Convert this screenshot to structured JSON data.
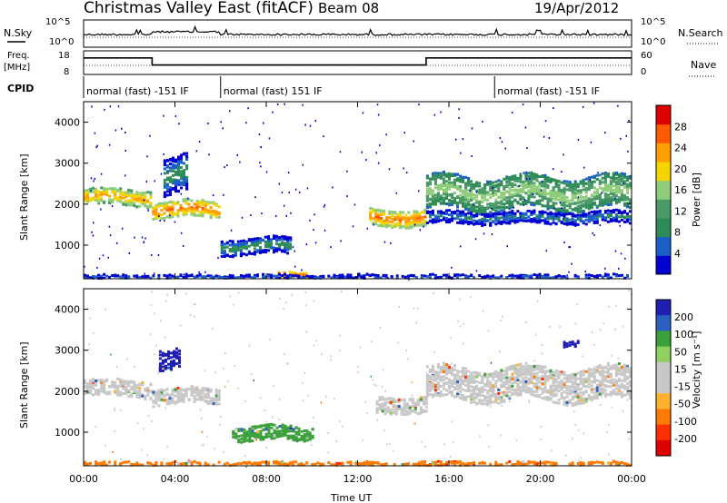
{
  "header": {
    "title": "Christmas Valley East (fitACF)",
    "beam": "Beam 08",
    "date": "19/Apr/2012"
  },
  "top_panels": {
    "nsky_label": "N.Sky",
    "nsearch_label": "N.Search",
    "nsky_ticks": [
      "10^5",
      "10^0"
    ],
    "nsearch_ticks": [
      "10^5",
      "10^0"
    ],
    "freq_label_1": "Freq.",
    "freq_label_2": "[MHz]",
    "freq_ticks": [
      "18",
      "8"
    ],
    "nave_label": "Nave",
    "nave_ticks": [
      "60",
      "0"
    ],
    "cpid_label": "CPID",
    "cpid_segments": [
      {
        "label": "normal (fast) -151 IF",
        "start_h": 0,
        "end_h": 6
      },
      {
        "label": "normal (fast) 151 IF",
        "start_h": 6,
        "end_h": 18
      },
      {
        "label": "normal (fast) -151 IF",
        "start_h": 18,
        "end_h": 24
      }
    ],
    "freq_series": [
      {
        "x": 0,
        "y": 15
      },
      {
        "x": 3,
        "y": 15
      },
      {
        "x": 3,
        "y": 12
      },
      {
        "x": 15,
        "y": 12
      },
      {
        "x": 15,
        "y": 15
      },
      {
        "x": 24,
        "y": 15
      }
    ]
  },
  "colors": {
    "power": [
      "#0000d0",
      "#1a5fc8",
      "#2e8b57",
      "#4a9a66",
      "#8fcc7a",
      "#f5d400",
      "#ffa000",
      "#ff5a00",
      "#e00000"
    ],
    "velocity": [
      "#1f1fb4",
      "#2b5fc0",
      "#3aa03a",
      "#8fd060",
      "#c8c8c8",
      "#c8c8c8",
      "#ffb030",
      "#ff7a00",
      "#ff3000",
      "#e00000"
    ]
  },
  "chart_data": [
    {
      "type": "heatmap",
      "panel": "power",
      "xlabel": "",
      "ylabel": "Slant Range [km]",
      "xlim": [
        0,
        24
      ],
      "ylim": [
        180,
        4500
      ],
      "yticks": [
        1000,
        2000,
        3000,
        4000
      ],
      "ytick_labels": [
        "1000",
        "2000",
        "3000",
        "4000"
      ],
      "colorbar_label": "Power [dB]",
      "colorbar_ticks": [
        "4",
        "8",
        "12",
        "16",
        "20",
        "24",
        "28"
      ],
      "colorbar_range": [
        0,
        30
      ],
      "bands": [
        {
          "t": [
            0,
            3
          ],
          "center": 2200,
          "width": 400,
          "value": 22
        },
        {
          "t": [
            3,
            6
          ],
          "center": 1900,
          "width": 400,
          "value": 24
        },
        {
          "t": [
            3.5,
            4.5
          ],
          "center": 2700,
          "width": 900,
          "value": 10
        },
        {
          "t": [
            6,
            9
          ],
          "center": 1000,
          "width": 400,
          "value": 10
        },
        {
          "t": [
            8.5,
            9.8
          ],
          "center": 300,
          "width": 150,
          "value": 26
        },
        {
          "t": [
            12.5,
            15
          ],
          "center": 1700,
          "width": 400,
          "value": 24
        },
        {
          "t": [
            15,
            24
          ],
          "center": 2300,
          "width": 800,
          "value": 16
        },
        {
          "t": [
            15,
            24
          ],
          "center": 1700,
          "width": 300,
          "value": 8
        },
        {
          "t": [
            0,
            24
          ],
          "center": 250,
          "width": 120,
          "value": 6
        }
      ]
    },
    {
      "type": "heatmap",
      "panel": "velocity",
      "xlabel": "Time UT",
      "ylabel": "Slant Range [km]",
      "xlim": [
        0,
        24
      ],
      "ylim": [
        180,
        4500
      ],
      "xticks": [
        0,
        4,
        8,
        12,
        16,
        20,
        24
      ],
      "xtick_labels": [
        "00:00",
        "04:00",
        "08:00",
        "12:00",
        "16:00",
        "20:00",
        "00:00"
      ],
      "yticks": [
        1000,
        2000,
        3000,
        4000
      ],
      "ytick_labels": [
        "1000",
        "2000",
        "3000",
        "4000"
      ],
      "colorbar_label": "Velocity [m s⁻¹]",
      "colorbar_ticks": [
        "200",
        "100",
        "50",
        "15",
        "-15",
        "-50",
        "-100",
        "-200"
      ],
      "colorbar_range": [
        -250,
        250
      ],
      "bands": [
        {
          "t": [
            0,
            3
          ],
          "center": 2100,
          "width": 400,
          "value": 0
        },
        {
          "t": [
            3,
            6
          ],
          "center": 1900,
          "width": 400,
          "value": 0
        },
        {
          "t": [
            3.3,
            4.2
          ],
          "center": 2800,
          "width": 500,
          "value": 200
        },
        {
          "t": [
            6.5,
            10
          ],
          "center": 1000,
          "width": 350,
          "value": 60
        },
        {
          "t": [
            12.8,
            15
          ],
          "center": 1700,
          "width": 400,
          "value": 0
        },
        {
          "t": [
            15,
            24
          ],
          "center": 2200,
          "width": 800,
          "value": 0
        },
        {
          "t": [
            21,
            21.7
          ],
          "center": 3200,
          "width": 150,
          "value": 200
        },
        {
          "t": [
            0,
            24
          ],
          "center": 250,
          "width": 120,
          "value": -40
        }
      ]
    }
  ]
}
